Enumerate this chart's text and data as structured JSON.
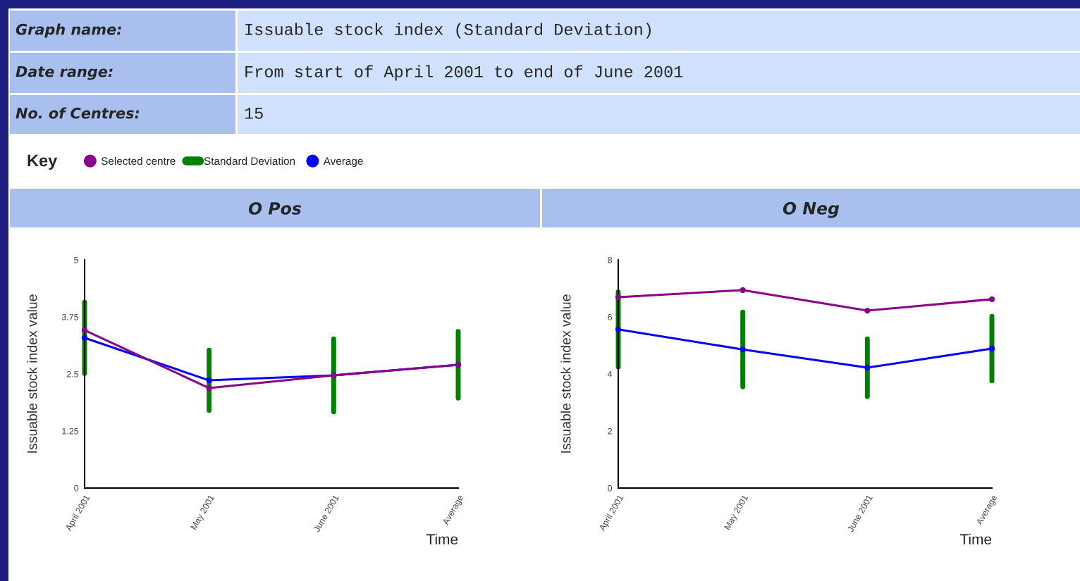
{
  "chart_data": [
    {
      "type": "line",
      "title": "O Pos",
      "legend_title": "Key",
      "legend": "top left",
      "annotations": [
        "Graph name:",
        "Issuable stock index (Standard Deviation)",
        "Date range:",
        "From start of April 2001 to end of June 2001",
        "No. of Centres:",
        "15",
        "Standard Deviation"
      ],
      "xlabel": "Time",
      "ylabel": "Issuable stock index value",
      "categories": [
        "April 2001",
        "May 2001",
        "June 2001",
        "Average"
      ],
      "ylim": [
        0,
        5
      ],
      "yticks": [
        0,
        1.25,
        2.5,
        3.75,
        5
      ],
      "grid": false,
      "marker": "circle",
      "line_style": "solid",
      "series": [
        {
          "name": "Selected centre",
          "color": "#8b008b",
          "values": [
            3.46,
            2.19,
            2.47,
            2.7
          ]
        },
        {
          "name": "Average",
          "color": "#0000ff",
          "values": [
            3.29,
            2.36,
            2.47,
            2.7
          ],
          "errors": [
            0.78,
            0.66,
            0.8,
            0.73
          ]
        }
      ]
    },
    {
      "type": "line",
      "title": "O Neg",
      "xlabel": "Time",
      "ylabel": "Issuable stock index value",
      "categories": [
        "April 2001",
        "May 2001",
        "June 2001",
        "Average"
      ],
      "ylim": [
        0,
        8
      ],
      "yticks": [
        0,
        2,
        4,
        6,
        8
      ],
      "grid": false,
      "marker": "circle",
      "line_style": "solid",
      "series": [
        {
          "color": "#8b008b",
          "values": [
            6.69,
            6.94,
            6.22,
            6.62
          ]
        },
        {
          "color": "#0000ff",
          "values": [
            5.56,
            4.86,
            4.22,
            4.89
          ],
          "errors": [
            1.31,
            1.31,
            1.01,
            1.13
          ]
        }
      ]
    }
  ]
}
